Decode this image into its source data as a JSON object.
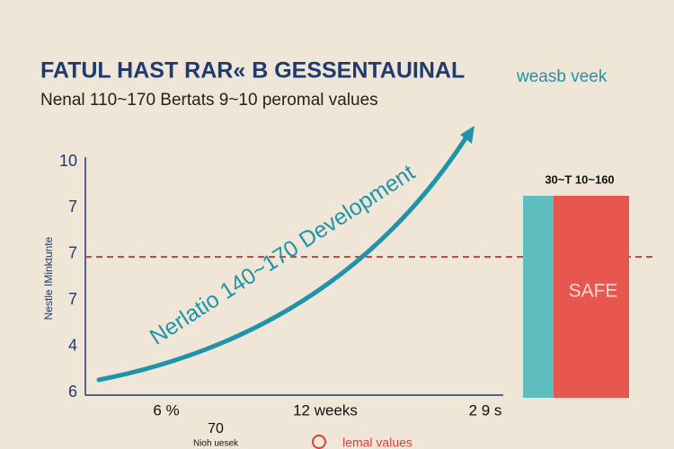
{
  "chart_data": {
    "type": "line",
    "title": "FATUL HAST RAR« B GESSENTAUINAL",
    "subtitle": "Nenal 110~170 Bertats 9~10 peromal values",
    "legend_text": "weasb veek",
    "y_axis_label": "Nestle IMinktunte",
    "y_labels": [
      "10",
      "7",
      "7",
      "7",
      "4",
      "6"
    ],
    "x_labels": [
      "6 %",
      "12 weeks",
      "2 9 s"
    ],
    "curve_label": "Nerlatio 140~170 Development",
    "bar_label": "30~T 10~160",
    "bar_text": "SAFE",
    "footer": {
      "value": "70",
      "caption": "Nioh uesek",
      "legend": "lemal values"
    },
    "colors": {
      "line": "#1f94a8",
      "reference": "#d9403a",
      "bar_left": "#5fbfc0",
      "bar_right": "#e8574f",
      "text": "#1e3a6e"
    }
  }
}
